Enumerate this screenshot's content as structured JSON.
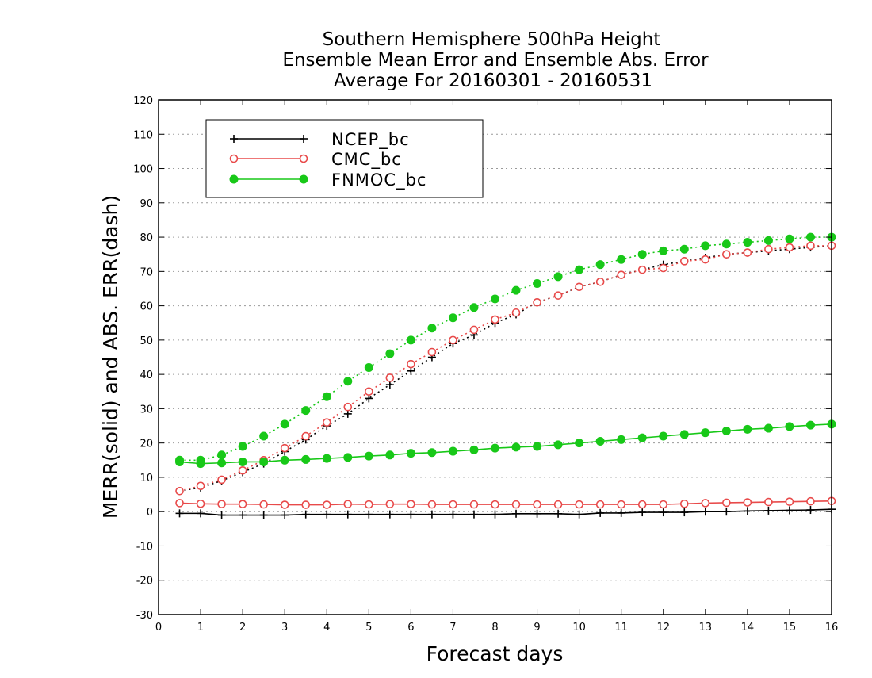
{
  "chart_data": {
    "type": "line",
    "title_lines": [
      "Southern Hemisphere 500hPa Height",
      "Ensemble Mean Error and Ensemble Abs. Error",
      "Average For 20160301 - 20160531"
    ],
    "xlabel": "Forecast days",
    "ylabel": "MERR(solid) and ABS. ERR(dash)",
    "xlim": [
      0,
      16
    ],
    "ylim": [
      -30,
      120
    ],
    "x_ticks": [
      0,
      1,
      2,
      3,
      4,
      5,
      6,
      7,
      8,
      9,
      10,
      11,
      12,
      13,
      14,
      15,
      16
    ],
    "y_ticks": [
      -30,
      -20,
      -10,
      0,
      10,
      20,
      30,
      40,
      50,
      60,
      70,
      80,
      90,
      100,
      110,
      120
    ],
    "grid": "horizontal dotted",
    "legend_position": "top-left",
    "x": [
      0.5,
      1.0,
      1.5,
      2.0,
      2.5,
      3.0,
      3.5,
      4.0,
      4.5,
      5.0,
      5.5,
      6.0,
      6.5,
      7.0,
      7.5,
      8.0,
      8.5,
      9.0,
      9.5,
      10.0,
      10.5,
      11.0,
      11.5,
      12.0,
      12.5,
      13.0,
      13.5,
      14.0,
      14.5,
      15.0,
      15.5,
      16.0
    ],
    "series": [
      {
        "name": "NCEP_bc",
        "color": "#000000",
        "marker": "plus",
        "merr": [
          -0.5,
          -0.5,
          -1.0,
          -1.0,
          -1.0,
          -1.0,
          -0.8,
          -0.8,
          -0.8,
          -0.8,
          -0.8,
          -0.8,
          -0.8,
          -0.8,
          -0.8,
          -0.8,
          -0.6,
          -0.6,
          -0.6,
          -0.8,
          -0.4,
          -0.4,
          -0.2,
          -0.2,
          -0.2,
          0.0,
          0.0,
          0.2,
          0.3,
          0.4,
          0.5,
          0.7
        ],
        "abs_err": [
          6.0,
          7.0,
          9.0,
          11.5,
          14.0,
          17.5,
          21.0,
          25.0,
          28.5,
          33.0,
          37.0,
          41.0,
          45.0,
          49.0,
          51.5,
          55.0,
          57.5,
          61.0,
          63.0,
          65.5,
          67.0,
          69.0,
          70.5,
          72.0,
          73.0,
          74.0,
          75.0,
          75.5,
          76.0,
          76.5,
          77.0,
          77.5
        ]
      },
      {
        "name": "CMC_bc",
        "color": "#e84a4a",
        "marker": "open-circle",
        "merr": [
          2.5,
          2.3,
          2.2,
          2.2,
          2.1,
          2.0,
          2.0,
          2.0,
          2.2,
          2.1,
          2.2,
          2.2,
          2.1,
          2.1,
          2.1,
          2.1,
          2.1,
          2.1,
          2.1,
          2.1,
          2.1,
          2.1,
          2.1,
          2.1,
          2.3,
          2.5,
          2.6,
          2.7,
          2.8,
          2.9,
          3.0,
          3.1
        ],
        "abs_err": [
          6.0,
          7.5,
          9.3,
          12.0,
          15.0,
          18.5,
          22.0,
          26.0,
          30.5,
          35.0,
          39.0,
          43.0,
          46.5,
          50.0,
          53.0,
          56.0,
          58.0,
          61.0,
          63.0,
          65.5,
          67.0,
          69.0,
          70.5,
          71.0,
          73.0,
          73.5,
          75.0,
          75.5,
          76.5,
          77.0,
          77.5,
          77.5
        ]
      },
      {
        "name": "FNMOC_bc",
        "color": "#18c818",
        "marker": "filled-circle",
        "merr": [
          14.5,
          14.0,
          14.2,
          14.5,
          14.5,
          15.0,
          15.2,
          15.5,
          15.8,
          16.2,
          16.5,
          17.0,
          17.2,
          17.6,
          18.0,
          18.5,
          18.8,
          19.0,
          19.5,
          20.0,
          20.5,
          21.0,
          21.5,
          22.0,
          22.5,
          23.0,
          23.5,
          24.0,
          24.3,
          24.8,
          25.2,
          25.5
        ],
        "abs_err": [
          15.0,
          15.0,
          16.5,
          19.0,
          22.0,
          25.5,
          29.5,
          33.5,
          38.0,
          42.0,
          46.0,
          50.0,
          53.5,
          56.5,
          59.5,
          62.0,
          64.5,
          66.5,
          68.5,
          70.5,
          72.0,
          73.5,
          75.0,
          76.0,
          76.5,
          77.5,
          78.0,
          78.5,
          79.0,
          79.5,
          80.0,
          80.0
        ]
      }
    ]
  }
}
